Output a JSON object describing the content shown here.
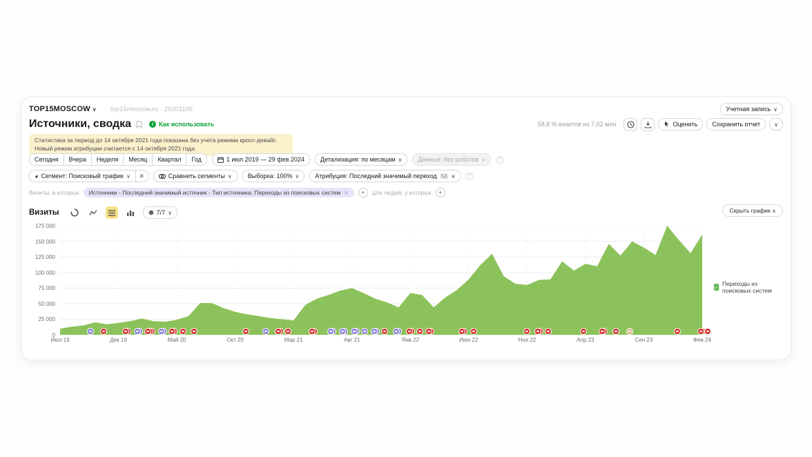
{
  "header": {
    "account": "TOP15MOSCOW",
    "counter": "top15moscow.ru - 29301105",
    "account_menu": "Учетная запись"
  },
  "title_bar": {
    "title": "Источники, сводка",
    "how_to": "Как использовать",
    "sample_info": "58,8 % визитов из 7,02 млн",
    "rate": "Оценить",
    "save": "Сохранить отчет"
  },
  "notice": "Статистика за период до 14 октября 2021 года показана без учета режима кросс-девайс. Новый режим атрибуции считается с 14 октября 2021 года.",
  "toolbar": {
    "periods": [
      "Сегодня",
      "Вчера",
      "Неделя",
      "Месяц",
      "Квартал",
      "Год"
    ],
    "date_range": "1 июл 2019 — 29 фев 2024",
    "granularity": "Детализация: по месяцам",
    "robots": "Данные: без роботов"
  },
  "segments": {
    "segment": "Сегмент: Поисковый трафик",
    "compare": "Сравнить сегменты",
    "sampling": "Выборка: 100%",
    "attribution": "Атрибуция: Последний значимый переход",
    "attribution_badge": "КД"
  },
  "filters": {
    "visits_label": "Визиты, в которых",
    "chip": "Источники - Последний значимый источник - Тип источника: Переходы из поисковых систем",
    "people_label": "для людей, у которых"
  },
  "chart_header": {
    "metric": "Визиты",
    "counter": "7/7",
    "hide": "Скрыть график"
  },
  "legend": {
    "label": "Переходы из поисковых систем",
    "color": "#58b94d"
  },
  "chart_data": {
    "type": "area",
    "title": "Визиты",
    "series_name": "Переходы из поисковых систем",
    "fill_color": "#8cc25b",
    "grid": true,
    "legend_position": "right",
    "ylim": [
      0,
      175000
    ],
    "yticks": [
      0,
      25000,
      50000,
      75000,
      100000,
      125000,
      150000,
      175000
    ],
    "ytick_labels": [
      "0",
      "25 000",
      "50 000",
      "75 000",
      "100 000",
      "125 000",
      "150 000",
      "175 000"
    ],
    "x": [
      "Июл 19",
      "Авг 19",
      "Сен 19",
      "Окт 19",
      "Ноя 19",
      "Дек 19",
      "Янв 20",
      "Фев 20",
      "Мар 20",
      "Апр 20",
      "Май 20",
      "Июн 20",
      "Июл 20",
      "Авг 20",
      "Сен 20",
      "Окт 20",
      "Ноя 20",
      "Дек 20",
      "Янв 21",
      "Фев 21",
      "Мар 21",
      "Апр 21",
      "Май 21",
      "Июн 21",
      "Июл 21",
      "Авг 21",
      "Сен 21",
      "Окт 21",
      "Ноя 21",
      "Дек 21",
      "Янв 22",
      "Фев 22",
      "Мар 22",
      "Апр 22",
      "Май 22",
      "Июн 22",
      "Июл 22",
      "Авг 22",
      "Сен 22",
      "Окт 22",
      "Ноя 22",
      "Дек 22",
      "Янв 23",
      "Фев 23",
      "Мар 23",
      "Апр 23",
      "Май 23",
      "Июн 23",
      "Июл 23",
      "Авг 23",
      "Сен 23",
      "Окт 23",
      "Ноя 23",
      "Дек 23",
      "Янв 24",
      "Фев 24"
    ],
    "values": [
      10000,
      13000,
      15000,
      20000,
      17000,
      19000,
      22000,
      26000,
      22000,
      21000,
      24000,
      30000,
      51000,
      51000,
      43000,
      37000,
      33000,
      30000,
      27000,
      25000,
      23000,
      48000,
      58000,
      64000,
      71000,
      75000,
      67000,
      58000,
      52000,
      44000,
      67000,
      64000,
      44000,
      60000,
      72000,
      89000,
      112000,
      130000,
      94000,
      82000,
      80000,
      88000,
      89000,
      118000,
      103000,
      114000,
      110000,
      146000,
      127000,
      150000,
      140000,
      128000,
      175000,
      152000,
      131000,
      161000
    ],
    "xtick_index": [
      0,
      5,
      10,
      15,
      20,
      25,
      30,
      35,
      40,
      45,
      50,
      55
    ],
    "xtick_labels": [
      "Июл 19",
      "Дек 19",
      "Май 20",
      "Окт 20",
      "Мар 21",
      "Авг 21",
      "Янв 22",
      "Июн 22",
      "Ноя 22",
      "Апр 23",
      "Сен 23",
      "Фев 24"
    ]
  },
  "marker_colors": {
    "red": "#d4382f",
    "purple": "#8f87da",
    "tan": "#dfb48f"
  },
  "markers": [
    {
      "m": 2.6,
      "c": "purple",
      "n": 1
    },
    {
      "m": 3.7,
      "c": "red",
      "n": 1
    },
    {
      "m": 5.6,
      "c": "red",
      "n": 2
    },
    {
      "m": 6.6,
      "c": "purple",
      "n": 2
    },
    {
      "m": 7.5,
      "c": "red",
      "n": 3
    },
    {
      "m": 8.7,
      "c": "purple",
      "n": 2
    },
    {
      "m": 9.6,
      "c": "red",
      "n": 2
    },
    {
      "m": 10.5,
      "c": "red",
      "n": 1
    },
    {
      "m": 11.5,
      "c": "red",
      "n": 1
    },
    {
      "m": 15.9,
      "c": "red",
      "n": 1
    },
    {
      "m": 17.6,
      "c": "purple",
      "n": 1
    },
    {
      "m": 18.7,
      "c": "red",
      "n": 2
    },
    {
      "m": 19.5,
      "c": "red",
      "n": 1
    },
    {
      "m": 21.6,
      "c": "red",
      "n": 2
    },
    {
      "m": 23.2,
      "c": "purple",
      "n": 2
    },
    {
      "m": 24.2,
      "c": "purple",
      "n": 2
    },
    {
      "m": 25.2,
      "c": "purple",
      "n": 2
    },
    {
      "m": 26.1,
      "c": "purple",
      "n": 1
    },
    {
      "m": 26.9,
      "c": "purple",
      "n": 2
    },
    {
      "m": 27.8,
      "c": "red",
      "n": 1
    },
    {
      "m": 28.8,
      "c": "purple",
      "n": 2
    },
    {
      "m": 29.9,
      "c": "red",
      "n": 2
    },
    {
      "m": 30.8,
      "c": "red",
      "n": 1
    },
    {
      "m": 31.6,
      "c": "red",
      "n": 2
    },
    {
      "m": 34.4,
      "c": "red",
      "n": 2
    },
    {
      "m": 35.4,
      "c": "red",
      "n": 1
    },
    {
      "m": 40.0,
      "c": "red",
      "n": 1
    },
    {
      "m": 40.9,
      "c": "red",
      "n": 2
    },
    {
      "m": 41.8,
      "c": "red",
      "n": 1
    },
    {
      "m": 44.8,
      "c": "red",
      "n": 1
    },
    {
      "m": 46.4,
      "c": "red",
      "n": 2
    },
    {
      "m": 47.6,
      "c": "red",
      "n": 1
    },
    {
      "m": 48.8,
      "c": "tan",
      "n": 1
    },
    {
      "m": 52.9,
      "c": "red",
      "n": 1
    },
    {
      "m": 54.9,
      "c": "red",
      "n": 2
    },
    {
      "m": 55.5,
      "c": "red",
      "n": 1
    }
  ]
}
